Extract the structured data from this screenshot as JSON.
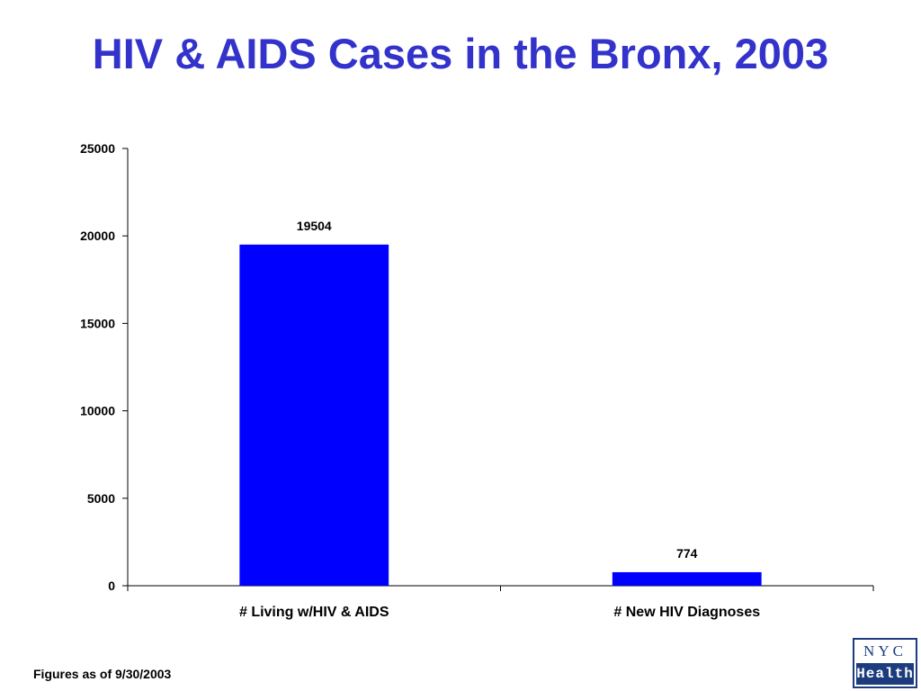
{
  "title": "HIV & AIDS Cases in the Bronx, 2003",
  "footnote": "Figures as of 9/30/2003",
  "logo": {
    "top_text": "NYC",
    "bottom_text": "Health",
    "color": "#1c3c7e"
  },
  "colors": {
    "title": "#3333cc",
    "bar": "#0000ff",
    "axis": "#000000"
  },
  "chart_data": {
    "type": "bar",
    "categories": [
      "# Living w/HIV & AIDS",
      "# New HIV Diagnoses"
    ],
    "values": [
      19504,
      774
    ],
    "data_labels": [
      "19504",
      "774"
    ],
    "ylim": [
      0,
      25000
    ],
    "yticks": [
      0,
      5000,
      10000,
      15000,
      20000,
      25000
    ],
    "ytick_labels": [
      "0",
      "5000",
      "10000",
      "15000",
      "20000",
      "25000"
    ],
    "xlabel": "",
    "ylabel": "",
    "grid": false,
    "legend": "none"
  }
}
